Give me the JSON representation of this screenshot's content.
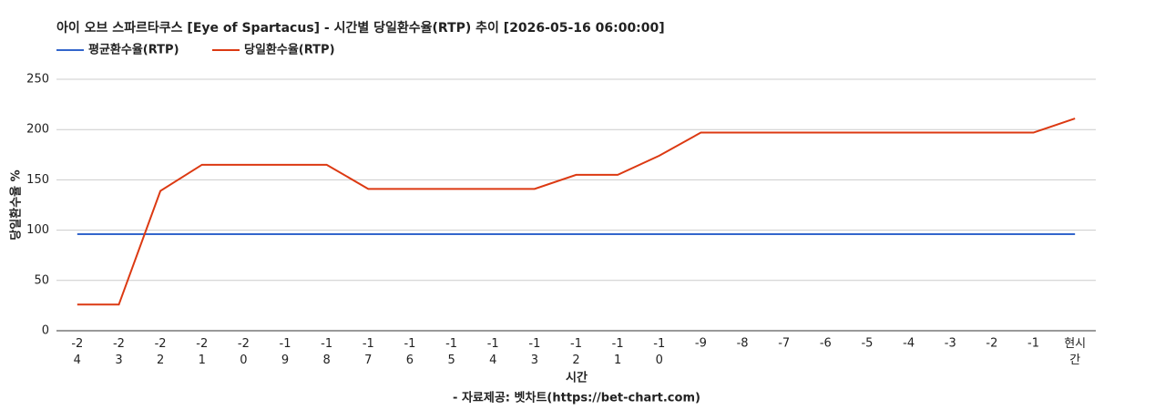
{
  "chart_data": {
    "type": "line",
    "title": "아이 오브 스파르타쿠스 [Eye of Spartacus] - 시간별 당일환수율(RTP) 추이 [2026-05-16 06:00:00]",
    "y_label": "당일환수율 %",
    "x_label": "시간",
    "source": "- 자료제공: 벳차트(https://bet-chart.com)",
    "categories": [
      "-24",
      "-23",
      "-22",
      "-21",
      "-20",
      "-19",
      "-18",
      "-17",
      "-16",
      "-15",
      "-14",
      "-13",
      "-12",
      "-11",
      "-10",
      "-9",
      "-8",
      "-7",
      "-6",
      "-5",
      "-4",
      "-3",
      "-2",
      "-1",
      "현시간"
    ],
    "series": [
      {
        "name": "평균환수율(RTP)",
        "color": "#3366cc",
        "values": [
          96,
          96,
          96,
          96,
          96,
          96,
          96,
          96,
          96,
          96,
          96,
          96,
          96,
          96,
          96,
          96,
          96,
          96,
          96,
          96,
          96,
          96,
          96,
          96,
          96
        ]
      },
      {
        "name": "당일환수율(RTP)",
        "color": "#dc3912",
        "values": [
          26,
          26,
          139,
          165,
          165,
          165,
          165,
          141,
          141,
          141,
          141,
          141,
          155,
          155,
          174,
          197,
          197,
          197,
          197,
          197,
          197,
          197,
          197,
          197,
          211
        ]
      }
    ],
    "ylim": [
      0,
      250
    ],
    "yticks": [
      0,
      50,
      100,
      150,
      200,
      250
    ],
    "grid": true
  }
}
